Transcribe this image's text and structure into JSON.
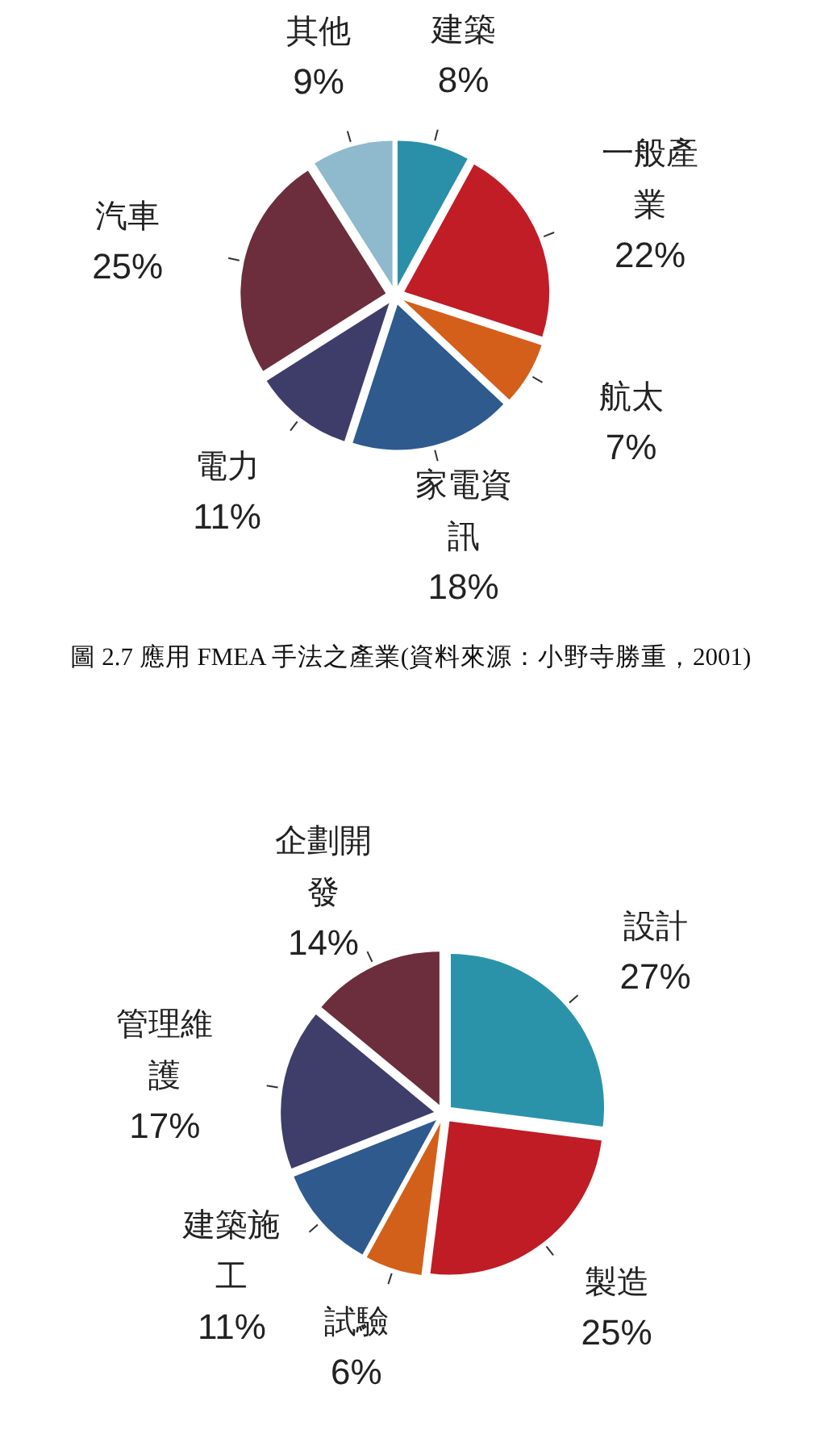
{
  "chart_data": [
    {
      "type": "pie",
      "categories": [
        "建築",
        "一般產業",
        "航太",
        "家電資訊",
        "電力",
        "汽車",
        "其他"
      ],
      "values": [
        8,
        22,
        7,
        18,
        11,
        25,
        9
      ],
      "value_labels": [
        "8%",
        "22%",
        "7%",
        "18%",
        "11%",
        "25%",
        "9%"
      ],
      "colors": [
        "#2a8fa8",
        "#c01d27",
        "#d35f1b",
        "#2e5a8e",
        "#3e3d6a",
        "#6c2d3d",
        "#8fb9cd"
      ],
      "annotations": [
        "圖 2.7 應用 FMEA 手法之產業(資料來源：小野寺勝重，2001)"
      ]
    },
    {
      "type": "pie",
      "categories": [
        "設計",
        "製造",
        "試驗",
        "建築施工",
        "管理維護",
        "企劃開發"
      ],
      "values": [
        27,
        25,
        6,
        11,
        17,
        14
      ],
      "value_labels": [
        "27%",
        "25%",
        "6%",
        "11%",
        "17%",
        "14%"
      ],
      "colors": [
        "#2a93aa",
        "#c01c25",
        "#d2601a",
        "#2e5a8e",
        "#3f3d6a",
        "#6c2d3d"
      ]
    }
  ]
}
